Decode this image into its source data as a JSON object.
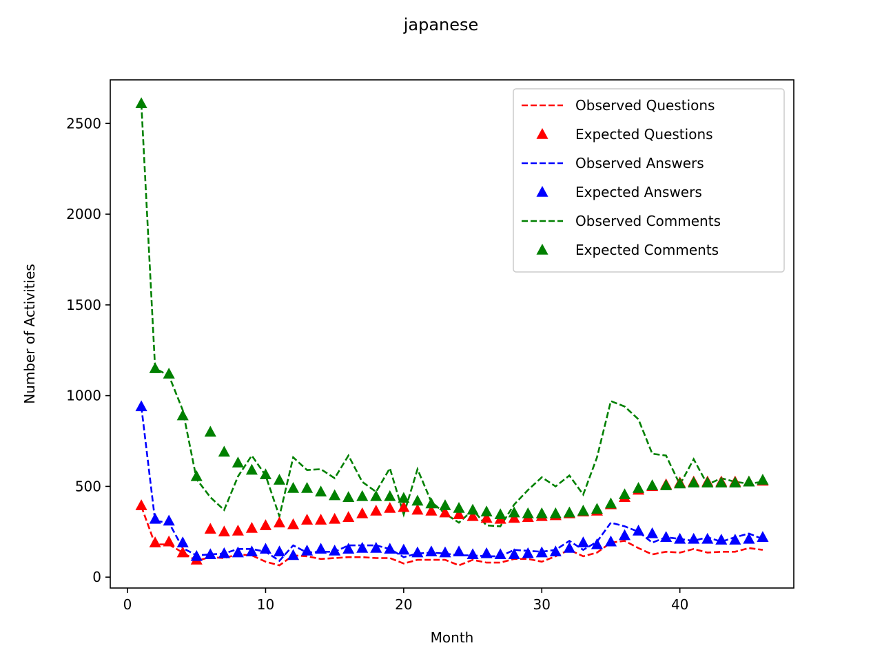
{
  "chart_data": {
    "type": "line",
    "title": "japanese",
    "xlabel": "Month",
    "ylabel": "Number of Activities",
    "xlim": [
      -1.25,
      48.25
    ],
    "ylim": [
      -60,
      2740
    ],
    "xticks": [
      0,
      10,
      20,
      30,
      40
    ],
    "yticks": [
      0,
      500,
      1000,
      1500,
      2000,
      2500
    ],
    "grid": false,
    "legend_position": "upper right",
    "x": [
      1,
      2,
      3,
      4,
      5,
      6,
      7,
      8,
      9,
      10,
      11,
      12,
      13,
      14,
      15,
      16,
      17,
      18,
      19,
      20,
      21,
      22,
      23,
      24,
      25,
      26,
      27,
      28,
      29,
      30,
      31,
      32,
      33,
      34,
      35,
      36,
      37,
      38,
      39,
      40,
      41,
      42,
      43,
      44,
      45,
      46
    ],
    "series": [
      {
        "name": "Observed Questions",
        "kind": "dashed-line",
        "color": "#ff0000",
        "values": [
          390,
          180,
          180,
          135,
          90,
          110,
          105,
          125,
          120,
          85,
          65,
          120,
          115,
          100,
          105,
          110,
          110,
          105,
          105,
          75,
          95,
          95,
          95,
          65,
          95,
          80,
          80,
          100,
          100,
          85,
          115,
          150,
          115,
          135,
          190,
          200,
          160,
          125,
          140,
          135,
          155,
          135,
          140,
          140,
          160,
          150
        ]
      },
      {
        "name": "Expected Questions",
        "kind": "triangle-markers",
        "color": "#ff0000",
        "values": [
          395,
          190,
          195,
          135,
          95,
          265,
          250,
          255,
          270,
          285,
          300,
          290,
          315,
          315,
          320,
          330,
          350,
          365,
          380,
          385,
          370,
          365,
          355,
          345,
          335,
          325,
          320,
          325,
          330,
          335,
          340,
          350,
          360,
          365,
          400,
          440,
          480,
          500,
          510,
          520,
          525,
          525,
          525,
          525,
          525,
          530
        ]
      },
      {
        "name": "Observed Answers",
        "kind": "dashed-line",
        "color": "#0000ff",
        "values": [
          940,
          310,
          300,
          160,
          120,
          125,
          130,
          155,
          155,
          140,
          90,
          175,
          135,
          140,
          140,
          175,
          175,
          175,
          155,
          110,
          130,
          135,
          130,
          120,
          120,
          115,
          115,
          150,
          145,
          140,
          150,
          200,
          150,
          195,
          300,
          280,
          250,
          190,
          220,
          210,
          200,
          220,
          195,
          220,
          240,
          210
        ]
      },
      {
        "name": "Expected Answers",
        "kind": "triangle-markers",
        "color": "#0000ff",
        "values": [
          940,
          320,
          310,
          190,
          115,
          125,
          130,
          135,
          140,
          155,
          140,
          120,
          145,
          155,
          145,
          155,
          160,
          160,
          155,
          150,
          135,
          140,
          135,
          140,
          125,
          130,
          125,
          125,
          130,
          135,
          140,
          160,
          190,
          180,
          195,
          230,
          255,
          240,
          220,
          210,
          210,
          210,
          205,
          205,
          210,
          220
        ]
      },
      {
        "name": "Observed Comments",
        "kind": "dashed-line",
        "color": "#008000",
        "values": [
          2610,
          1150,
          1110,
          920,
          540,
          440,
          370,
          555,
          670,
          560,
          335,
          660,
          590,
          595,
          545,
          670,
          525,
          470,
          600,
          345,
          595,
          415,
          350,
          300,
          370,
          285,
          280,
          400,
          480,
          550,
          500,
          560,
          455,
          660,
          970,
          940,
          870,
          680,
          670,
          510,
          650,
          510,
          545,
          525,
          515,
          525
        ]
      },
      {
        "name": "Expected Comments",
        "kind": "triangle-markers",
        "color": "#008000",
        "values": [
          2610,
          1150,
          1120,
          890,
          555,
          800,
          690,
          630,
          590,
          565,
          535,
          490,
          490,
          470,
          450,
          440,
          445,
          445,
          445,
          435,
          420,
          405,
          395,
          380,
          370,
          360,
          345,
          355,
          350,
          350,
          350,
          355,
          365,
          375,
          405,
          455,
          490,
          505,
          505,
          515,
          520,
          520,
          520,
          520,
          525,
          535
        ]
      }
    ]
  }
}
